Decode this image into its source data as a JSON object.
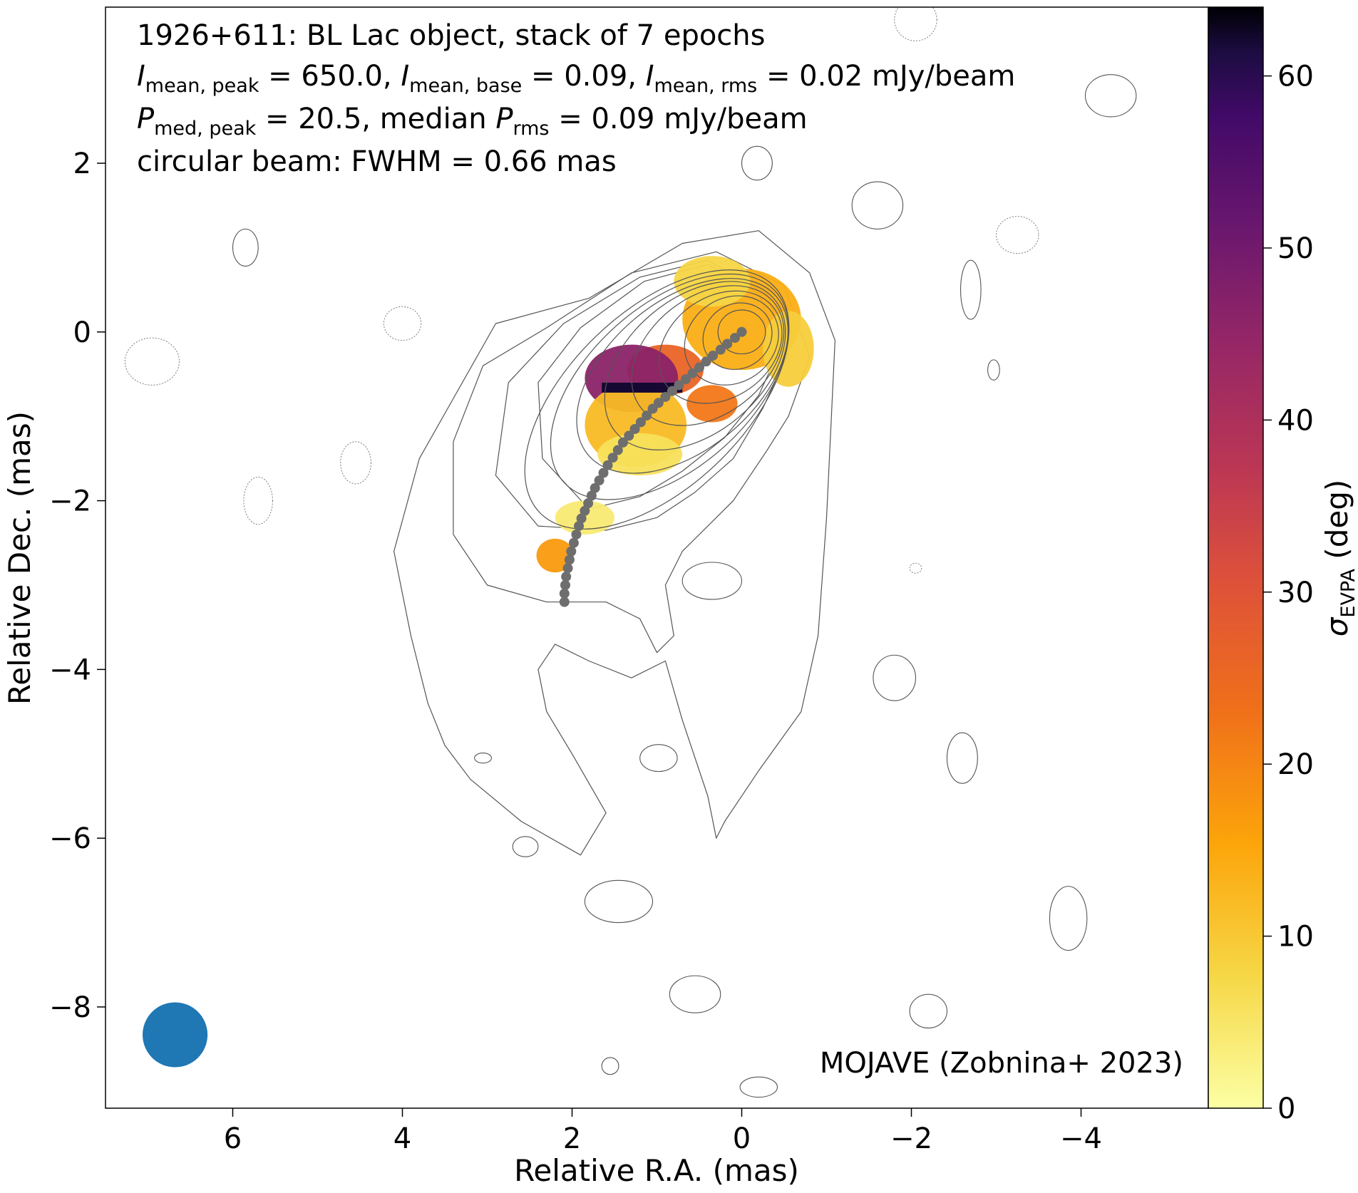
{
  "chart_data": {
    "type": "heatmap",
    "annotations": {
      "line1": "1926+611: BL Lac object, stack of 7 epochs",
      "line2": {
        "p1": "I",
        "s1": "mean, peak",
        "t1": " = 650.0, ",
        "p2": "I",
        "s2": "mean, base",
        "t2": " = 0.09, ",
        "p3": "I",
        "s3": "mean, rms",
        "t3": " = 0.02 mJy/beam"
      },
      "line3": {
        "p1": "P",
        "s1": "med, peak",
        "t1": " = 20.5, median ",
        "p2": "P",
        "s2": "rms",
        "t2": " = 0.09 mJy/beam"
      },
      "line4": "circular beam: FWHM = 0.66 mas",
      "credit": "MOJAVE (Zobnina+ 2023)"
    },
    "xlabel": "Relative R.A. (mas)",
    "ylabel": "Relative Dec. (mas)",
    "colorbar_label": {
      "main": "σ",
      "sub": "EVPA",
      "unit": " (deg)"
    },
    "xlim": [
      7.5,
      -5.5
    ],
    "ylim": [
      -9.2,
      3.85
    ],
    "x_ticks": [
      6,
      4,
      2,
      0,
      -2,
      -4
    ],
    "x_tick_labels": [
      "6",
      "4",
      "2",
      "0",
      "−2",
      "−4"
    ],
    "y_ticks": [
      2,
      0,
      -2,
      -4,
      -6,
      -8
    ],
    "y_tick_labels": [
      "2",
      "0",
      "−2",
      "−4",
      "−6",
      "−8"
    ],
    "colorbar_ticks": [
      0,
      10,
      20,
      30,
      40,
      50,
      60
    ],
    "colorbar_tick_labels": [
      "0",
      "10",
      "20",
      "30",
      "40",
      "50",
      "60"
    ],
    "colorbar_range": [
      0,
      64
    ],
    "colormap": "inferno_r",
    "beam": {
      "ra": 6.68,
      "dec": -8.33,
      "fwhm_mas": 0.66,
      "color": "#1f77b4"
    },
    "ridge_line": {
      "color": "#6e6e6e",
      "ra": [
        0.0,
        0.08,
        0.17,
        0.25,
        0.34,
        0.42,
        0.5,
        0.58,
        0.66,
        0.74,
        0.82,
        0.9,
        0.98,
        1.05,
        1.12,
        1.19,
        1.26,
        1.33,
        1.4,
        1.46,
        1.52,
        1.58,
        1.63,
        1.68,
        1.73,
        1.77,
        1.81,
        1.85,
        1.89,
        1.92,
        1.95,
        1.98,
        2.01,
        2.03,
        2.05,
        2.07,
        2.08,
        2.09,
        2.09
      ],
      "dec": [
        0.0,
        -0.07,
        -0.14,
        -0.21,
        -0.28,
        -0.35,
        -0.42,
        -0.49,
        -0.56,
        -0.63,
        -0.7,
        -0.77,
        -0.84,
        -0.91,
        -0.99,
        -1.07,
        -1.15,
        -1.23,
        -1.31,
        -1.4,
        -1.49,
        -1.58,
        -1.67,
        -1.76,
        -1.85,
        -1.94,
        -2.03,
        -2.12,
        -2.21,
        -2.3,
        -2.4,
        -2.5,
        -2.6,
        -2.7,
        -2.8,
        -2.9,
        -3.0,
        -3.1,
        -3.2
      ]
    },
    "evpa_blobs": [
      {
        "ra": 0.0,
        "dec": 0.15,
        "rx": 0.7,
        "ry": 0.6,
        "value": 14
      },
      {
        "ra": 0.35,
        "dec": 0.6,
        "rx": 0.45,
        "ry": 0.3,
        "value": 8
      },
      {
        "ra": -0.55,
        "dec": -0.2,
        "rx": 0.3,
        "ry": 0.45,
        "value": 9
      },
      {
        "ra": 0.9,
        "dec": -0.45,
        "rx": 0.45,
        "ry": 0.3,
        "value": 26
      },
      {
        "ra": 1.3,
        "dec": -0.55,
        "rx": 0.55,
        "ry": 0.4,
        "value": 46
      },
      {
        "ra": 1.25,
        "dec": -1.1,
        "rx": 0.6,
        "ry": 0.5,
        "value": 12
      },
      {
        "ra": 1.2,
        "dec": -1.45,
        "rx": 0.5,
        "ry": 0.25,
        "value": 6
      },
      {
        "ra": 0.35,
        "dec": -0.85,
        "rx": 0.3,
        "ry": 0.22,
        "value": 22
      },
      {
        "ra": 1.85,
        "dec": -2.2,
        "rx": 0.35,
        "ry": 0.2,
        "value": 4
      },
      {
        "ra": 2.2,
        "dec": -2.65,
        "rx": 0.22,
        "ry": 0.2,
        "value": 17
      }
    ],
    "evpa_bar": {
      "ra_from": 1.65,
      "ra_to": 0.7,
      "dec": -0.66,
      "value": 62
    },
    "contour_levels": [
      {
        "ra": 0.0,
        "dec": 0.0,
        "rx": 0.28,
        "ry": 0.26,
        "rot": 0
      },
      {
        "ra": 0.05,
        "dec": -0.05,
        "rx": 0.42,
        "ry": 0.38,
        "rot": -35
      },
      {
        "ra": 0.12,
        "dec": -0.1,
        "rx": 0.58,
        "ry": 0.5,
        "rot": -35
      },
      {
        "ra": 0.25,
        "dec": -0.18,
        "rx": 0.78,
        "ry": 0.6,
        "rot": -35
      },
      {
        "ra": 0.4,
        "dec": -0.28,
        "rx": 1.0,
        "ry": 0.7,
        "rot": -38
      },
      {
        "ra": 0.55,
        "dec": -0.4,
        "rx": 1.22,
        "ry": 0.8,
        "rot": -40
      },
      {
        "ra": 0.7,
        "dec": -0.52,
        "rx": 1.45,
        "ry": 0.88,
        "rot": -40
      },
      {
        "ra": 0.85,
        "dec": -0.65,
        "rx": 1.68,
        "ry": 0.96,
        "rot": -42
      },
      {
        "ra": 1.0,
        "dec": -0.8,
        "rx": 1.92,
        "ry": 1.04,
        "rot": -44
      }
    ],
    "noise_islands": [
      {
        "ra": 5.85,
        "dec": 1.0,
        "rx": 0.15,
        "ry": 0.22,
        "dotted": false
      },
      {
        "ra": 6.95,
        "dec": -0.35,
        "rx": 0.32,
        "ry": 0.28,
        "dotted": true
      },
      {
        "ra": 4.0,
        "dec": 0.1,
        "rx": 0.22,
        "ry": 0.2,
        "dotted": true
      },
      {
        "ra": 4.55,
        "dec": -1.55,
        "rx": 0.18,
        "ry": 0.25,
        "dotted": true
      },
      {
        "ra": 5.7,
        "dec": -2.0,
        "rx": 0.17,
        "ry": 0.28,
        "dotted": true
      },
      {
        "ra": -0.18,
        "dec": 2.0,
        "rx": 0.18,
        "ry": 0.2,
        "dotted": false
      },
      {
        "ra": -1.6,
        "dec": 1.5,
        "rx": 0.3,
        "ry": 0.28,
        "dotted": false
      },
      {
        "ra": -3.25,
        "dec": 1.15,
        "rx": 0.25,
        "ry": 0.22,
        "dotted": true
      },
      {
        "ra": -2.7,
        "dec": 0.5,
        "rx": 0.12,
        "ry": 0.35,
        "dotted": false
      },
      {
        "ra": -2.97,
        "dec": -0.45,
        "rx": 0.07,
        "ry": 0.12,
        "dotted": false
      },
      {
        "ra": -4.35,
        "dec": 2.8,
        "rx": 0.3,
        "ry": 0.25,
        "dotted": false
      },
      {
        "ra": -2.05,
        "dec": 3.7,
        "rx": 0.25,
        "ry": 0.25,
        "dotted": true
      },
      {
        "ra": -1.8,
        "dec": -4.1,
        "rx": 0.25,
        "ry": 0.27,
        "dotted": false
      },
      {
        "ra": -2.6,
        "dec": -5.05,
        "rx": 0.18,
        "ry": 0.3,
        "dotted": false
      },
      {
        "ra": -3.85,
        "dec": -6.95,
        "rx": 0.22,
        "ry": 0.38,
        "dotted": false
      },
      {
        "ra": -2.2,
        "dec": -8.05,
        "rx": 0.22,
        "ry": 0.2,
        "dotted": false
      },
      {
        "ra": -0.2,
        "dec": -8.95,
        "rx": 0.22,
        "ry": 0.12,
        "dotted": false
      },
      {
        "ra": 0.55,
        "dec": -7.85,
        "rx": 0.3,
        "ry": 0.22,
        "dotted": false
      },
      {
        "ra": 1.45,
        "dec": -6.75,
        "rx": 0.4,
        "ry": 0.25,
        "dotted": false
      },
      {
        "ra": 2.55,
        "dec": -6.1,
        "rx": 0.15,
        "ry": 0.12,
        "dotted": false
      },
      {
        "ra": 3.05,
        "dec": -5.05,
        "rx": 0.1,
        "ry": 0.06,
        "dotted": false
      },
      {
        "ra": 1.55,
        "dec": -8.7,
        "rx": 0.1,
        "ry": 0.1,
        "dotted": false
      },
      {
        "ra": -2.05,
        "dec": -2.8,
        "rx": 0.07,
        "ry": 0.06,
        "dotted": true
      },
      {
        "ra": 0.98,
        "dec": -5.05,
        "rx": 0.22,
        "ry": 0.16,
        "dotted": false
      },
      {
        "ra": 0.35,
        "dec": -2.95,
        "rx": 0.35,
        "ry": 0.22,
        "dotted": false
      }
    ],
    "outer_contours": [
      {
        "ra": [
          -1.1,
          -0.8,
          -0.2,
          0.7,
          1.8,
          2.9,
          3.8,
          4.1,
          3.9,
          3.7,
          3.5,
          3.2,
          2.6,
          1.9,
          1.6,
          2.0,
          2.3,
          2.4,
          2.2,
          1.8,
          1.3,
          0.9,
          0.7,
          0.4,
          0.3,
          0.2,
          -0.2,
          -0.7,
          -0.9,
          -1.0,
          -1.1
        ],
        "dec": [
          -0.1,
          0.7,
          1.2,
          1.05,
          0.4,
          0.1,
          -1.5,
          -2.6,
          -3.6,
          -4.4,
          -4.9,
          -5.3,
          -5.8,
          -6.2,
          -5.7,
          -5.0,
          -4.5,
          -4.0,
          -3.7,
          -3.9,
          -4.1,
          -3.9,
          -4.6,
          -5.5,
          -6.0,
          -5.8,
          -5.2,
          -4.5,
          -3.6,
          -2.2,
          -0.1
        ]
      },
      {
        "ra": [
          -0.8,
          -0.5,
          0.3,
          1.3,
          2.3,
          3.05,
          3.4,
          3.4,
          3.0,
          2.3,
          1.6,
          1.2,
          1.0,
          0.8,
          0.9,
          0.7,
          0.1,
          -0.3,
          -0.55,
          -0.8
        ],
        "dec": [
          -0.3,
          0.55,
          0.95,
          0.7,
          0.05,
          -0.4,
          -1.3,
          -2.4,
          -3.0,
          -3.2,
          -3.2,
          -3.4,
          -3.8,
          -3.6,
          -3.0,
          -2.6,
          -2.0,
          -1.4,
          -1.0,
          -0.3
        ]
      },
      {
        "ra": [
          -0.55,
          -0.3,
          0.4,
          1.2,
          2.1,
          2.75,
          2.9,
          2.4,
          1.6,
          1.0,
          0.55,
          0.1,
          -0.25,
          -0.55
        ],
        "dec": [
          -0.25,
          0.45,
          0.85,
          0.65,
          0.1,
          -0.6,
          -1.7,
          -2.3,
          -2.35,
          -2.2,
          -1.9,
          -1.5,
          -0.9,
          -0.25
        ]
      },
      {
        "ra": [
          -0.45,
          -0.2,
          0.4,
          1.15,
          1.9,
          2.4,
          2.35,
          1.8,
          1.2,
          0.7,
          0.2,
          -0.2,
          -0.45
        ],
        "dec": [
          -0.2,
          0.45,
          0.8,
          0.6,
          0.05,
          -0.6,
          -1.5,
          -2.1,
          -1.95,
          -1.65,
          -1.25,
          -0.75,
          -0.2
        ]
      }
    ]
  }
}
